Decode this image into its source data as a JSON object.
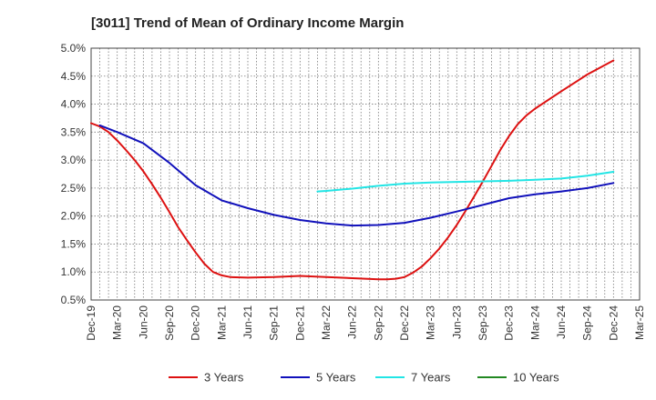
{
  "chart_data": {
    "type": "line",
    "title": "[3011]  Trend of Mean of Ordinary Income Margin",
    "xlabel": "",
    "ylabel": "",
    "ylim": [
      0.5,
      5.0
    ],
    "y_ticks": [
      "0.5%",
      "1.0%",
      "1.5%",
      "2.0%",
      "2.5%",
      "3.0%",
      "3.5%",
      "4.0%",
      "4.5%",
      "5.0%"
    ],
    "x_ticks": [
      "Dec-19",
      "Mar-20",
      "Jun-20",
      "Sep-20",
      "Dec-20",
      "Mar-21",
      "Jun-21",
      "Sep-21",
      "Dec-21",
      "Mar-22",
      "Jun-22",
      "Sep-22",
      "Dec-22",
      "Mar-23",
      "Jun-23",
      "Sep-23",
      "Dec-23",
      "Mar-24",
      "Jun-24",
      "Sep-24",
      "Dec-24",
      "Mar-25"
    ],
    "grid": true,
    "legend_position": "bottom",
    "series": [
      {
        "name": "3 Years",
        "color": "#dd1111",
        "x": [
          "Dec-19",
          "Jan-20",
          "Feb-20",
          "Mar-20",
          "Apr-20",
          "May-20",
          "Jun-20",
          "Jul-20",
          "Aug-20",
          "Sep-20",
          "Oct-20",
          "Nov-20",
          "Dec-20",
          "Jan-21",
          "Feb-21",
          "Mar-21",
          "Apr-21",
          "Jun-21",
          "Sep-21",
          "Dec-21",
          "Mar-22",
          "Jun-22",
          "Sep-22",
          "Oct-22",
          "Nov-22",
          "Dec-22",
          "Jan-23",
          "Feb-23",
          "Mar-23",
          "Apr-23",
          "May-23",
          "Jun-23",
          "Jul-23",
          "Aug-23",
          "Sep-23",
          "Oct-23",
          "Nov-23",
          "Dec-23",
          "Jan-24",
          "Feb-24",
          "Mar-24",
          "Jun-24",
          "Sep-24",
          "Dec-24"
        ],
        "values": [
          3.66,
          3.6,
          3.5,
          3.35,
          3.18,
          3.0,
          2.8,
          2.57,
          2.33,
          2.07,
          1.8,
          1.57,
          1.35,
          1.15,
          1.0,
          0.94,
          0.91,
          0.9,
          0.91,
          0.93,
          0.91,
          0.89,
          0.87,
          0.87,
          0.88,
          0.91,
          0.99,
          1.1,
          1.25,
          1.42,
          1.62,
          1.84,
          2.09,
          2.35,
          2.62,
          2.9,
          3.18,
          3.43,
          3.64,
          3.8,
          3.92,
          4.23,
          4.53,
          4.78
        ]
      },
      {
        "name": "5 Years",
        "color": "#1111bb",
        "x": [
          "Jan-20",
          "Mar-20",
          "Jun-20",
          "Sep-20",
          "Dec-20",
          "Mar-21",
          "Jun-21",
          "Sep-21",
          "Dec-21",
          "Mar-22",
          "Jun-22",
          "Sep-22",
          "Dec-22",
          "Mar-23",
          "Jun-23",
          "Sep-23",
          "Dec-23",
          "Mar-24",
          "Jun-24",
          "Sep-24",
          "Dec-24"
        ],
        "values": [
          3.62,
          3.5,
          3.3,
          2.95,
          2.55,
          2.28,
          2.14,
          2.02,
          1.93,
          1.87,
          1.83,
          1.84,
          1.88,
          1.97,
          2.08,
          2.2,
          2.32,
          2.39,
          2.44,
          2.5,
          2.59
        ]
      },
      {
        "name": "7 Years",
        "color": "#22e5e5",
        "x": [
          "Feb-22",
          "Mar-22",
          "Jun-22",
          "Sep-22",
          "Dec-22",
          "Mar-23",
          "Jun-23",
          "Sep-23",
          "Dec-23",
          "Mar-24",
          "Jun-24",
          "Sep-24",
          "Dec-24"
        ],
        "values": [
          2.44,
          2.45,
          2.49,
          2.54,
          2.58,
          2.6,
          2.61,
          2.62,
          2.63,
          2.65,
          2.67,
          2.72,
          2.79
        ]
      },
      {
        "name": "10 Years",
        "color": "#228822",
        "x": [],
        "values": []
      }
    ]
  }
}
